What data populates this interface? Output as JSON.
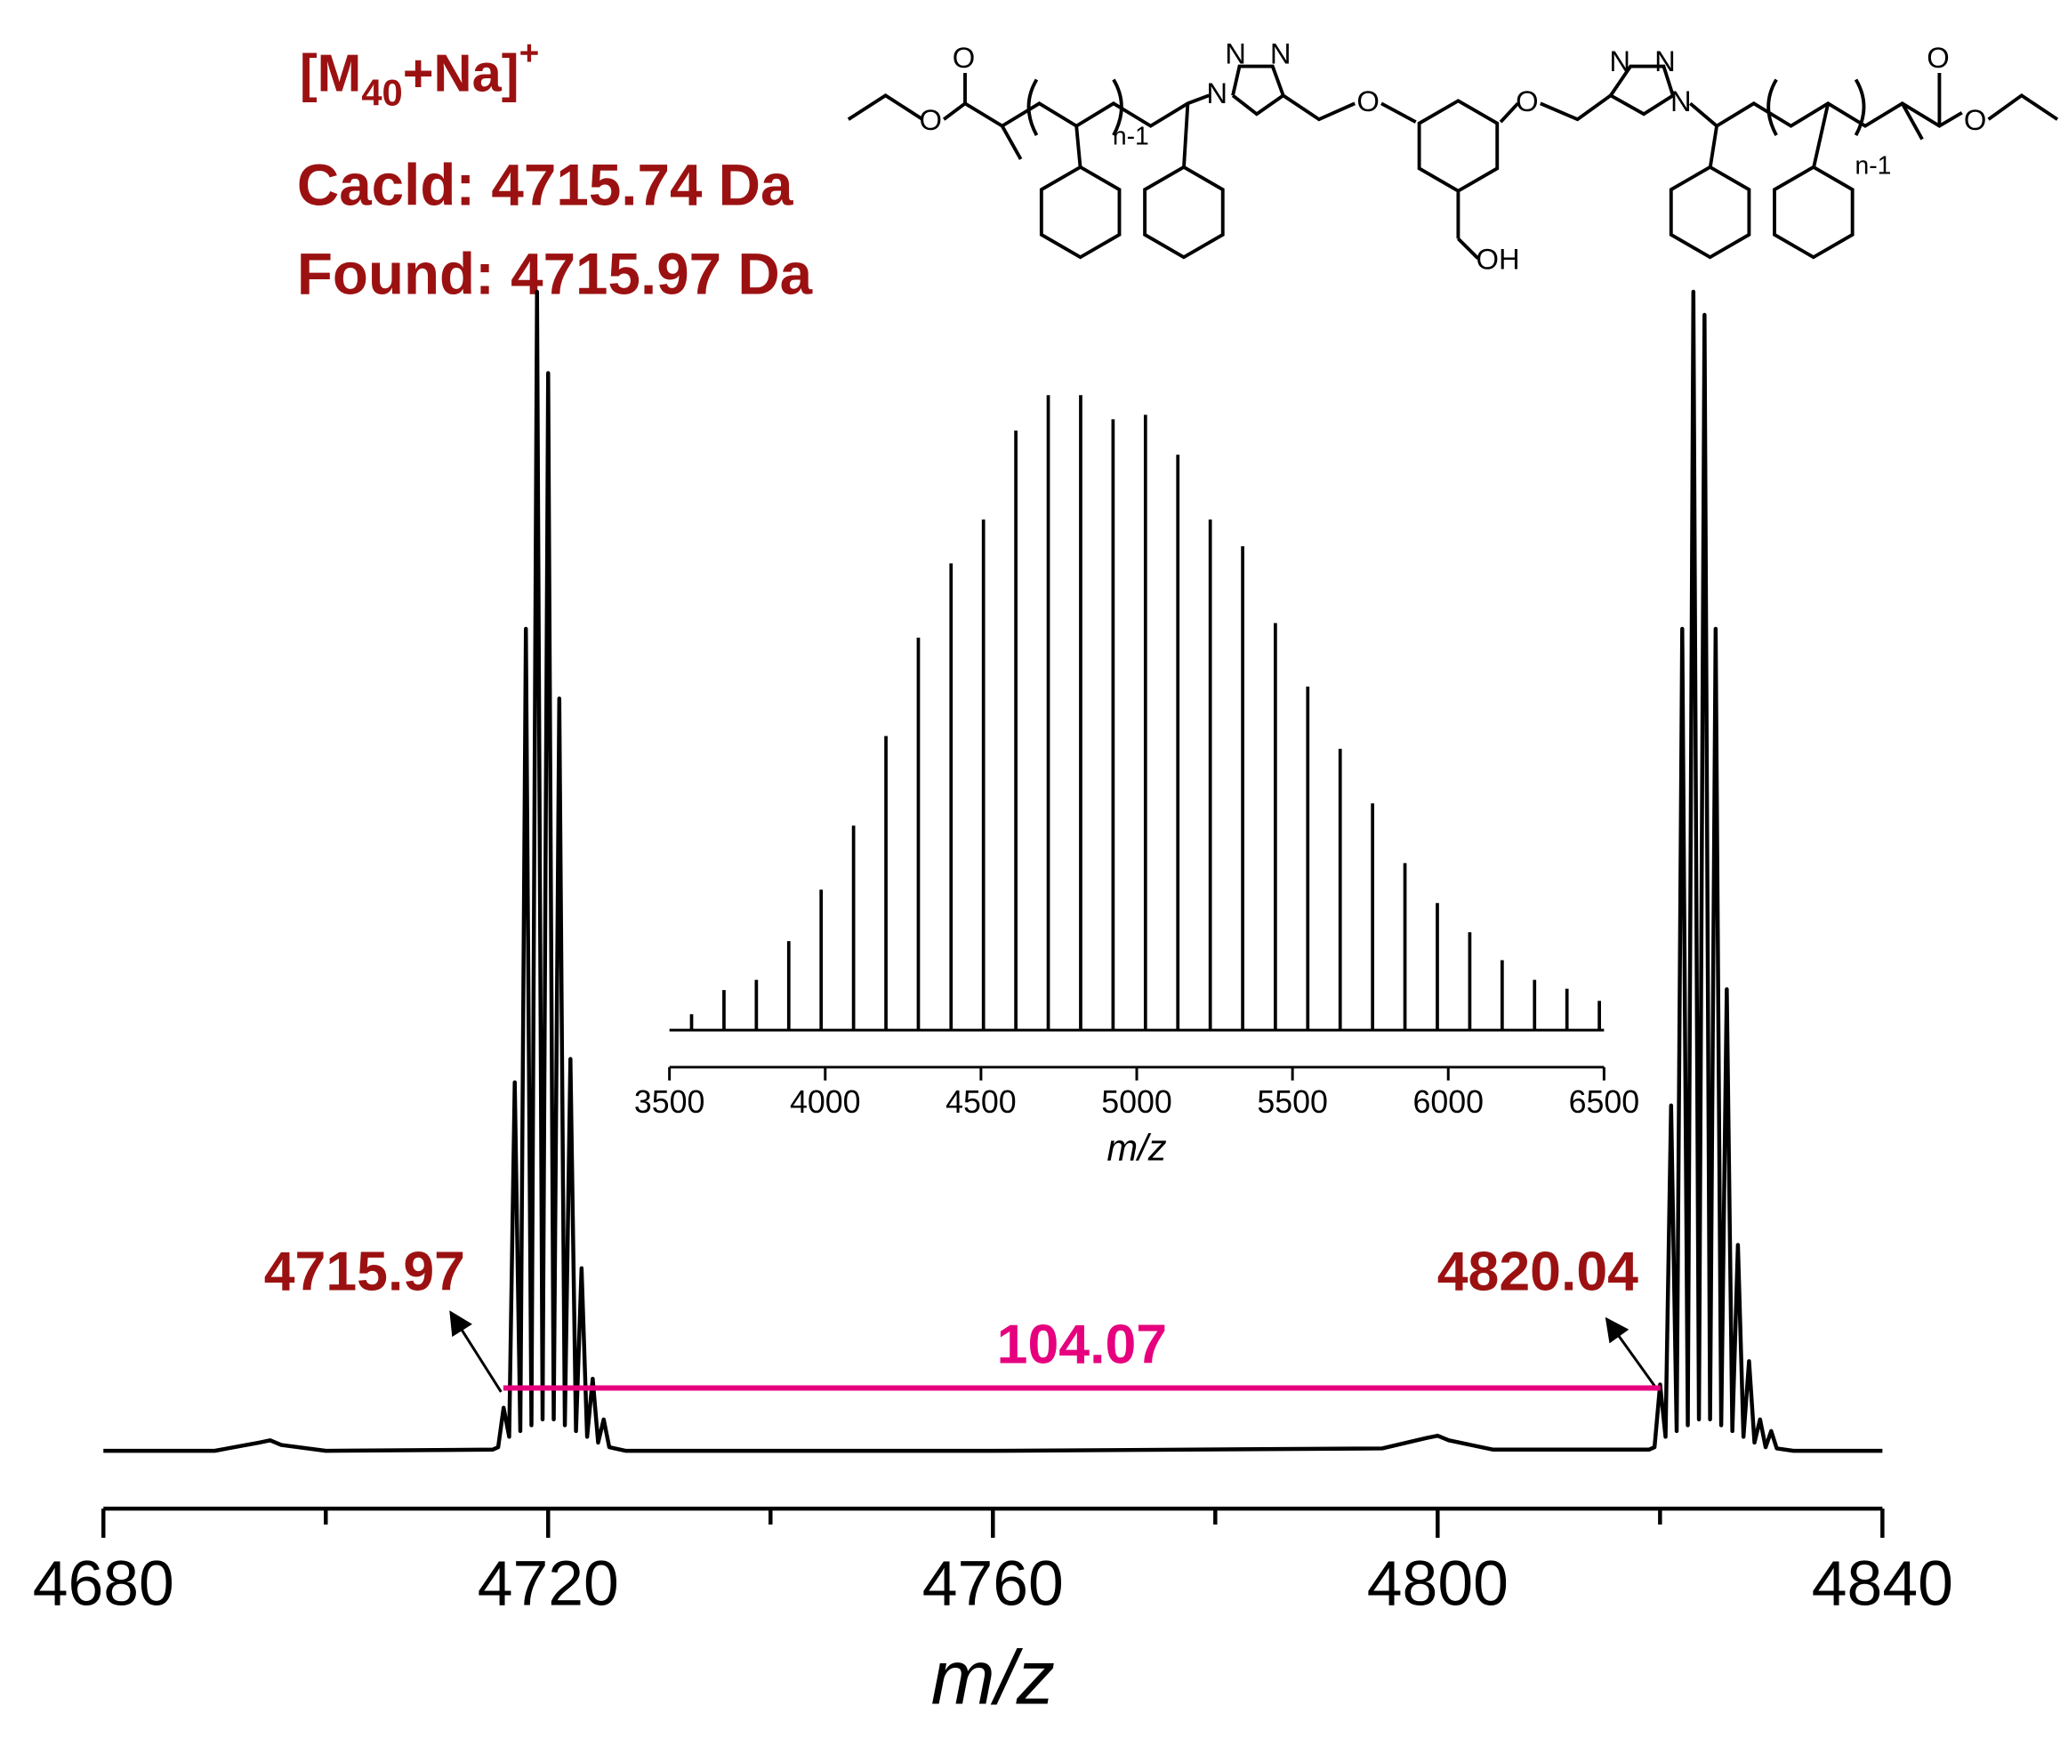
{
  "chart_data": [
    {
      "type": "line",
      "color": "#000000",
      "xlabel": "m/z",
      "xlim": [
        4680,
        4840
      ],
      "xticks": [
        4680,
        4720,
        4760,
        4800,
        4840
      ],
      "xminor": [
        4700,
        4740,
        4780,
        4820
      ],
      "ylim": [
        0,
        100
      ],
      "x": [
        4680,
        4690,
        4694,
        4695,
        4696,
        4700,
        4715,
        4715.5,
        4716,
        4716.5,
        4717,
        4717.5,
        4718,
        4718.5,
        4719,
        4719.5,
        4720,
        4720.5,
        4721,
        4721.5,
        4722,
        4722.5,
        4723,
        4723.5,
        4724,
        4724.5,
        4725,
        4725.5,
        4727,
        4760,
        4795,
        4799,
        4800,
        4801,
        4805,
        4819,
        4819.5,
        4820,
        4820.5,
        4821,
        4821.5,
        4822,
        4822.5,
        4823,
        4823.5,
        4824,
        4824.5,
        4825,
        4825.5,
        4826,
        4826.5,
        4827,
        4827.5,
        4828,
        4828.5,
        4829,
        4829.5,
        4830,
        4830.5,
        4832,
        4840
      ],
      "values": [
        0.3,
        0.3,
        1,
        1.2,
        0.8,
        0.3,
        0.4,
        0.6,
        4,
        1.5,
        32,
        2,
        71,
        2.5,
        100,
        3,
        93,
        3,
        65,
        2.5,
        34,
        2,
        16,
        1.5,
        6.5,
        1,
        3,
        0.6,
        0.3,
        0.3,
        0.5,
        1.4,
        1.6,
        1.2,
        0.4,
        0.4,
        0.6,
        6,
        1.5,
        30,
        2,
        71,
        2.5,
        100,
        3,
        98,
        3,
        71,
        2.5,
        40,
        2,
        18,
        1.5,
        8,
        1,
        3,
        0.6,
        2,
        0.5,
        0.3,
        0.3
      ],
      "ion": [
        "[M",
        "40",
        "+Na]",
        "+"
      ],
      "calcd": "Cacld: 4715.74 Da",
      "found": "Found: 4715.97 Da",
      "peak_labels": [
        4715.97,
        4820.04
      ],
      "difference": 104.07,
      "difference_color": "#e6007e",
      "label_color": "#9b1111"
    },
    {
      "type": "stem",
      "color": "#000000",
      "xlabel": "m/z",
      "xlim": [
        3500,
        6500
      ],
      "xticks": [
        3500,
        4000,
        4500,
        5000,
        5500,
        6000,
        6500
      ],
      "ylim": [
        0,
        100
      ],
      "x": [
        3571,
        3675,
        3779,
        3883,
        3987,
        4091,
        4195,
        4299,
        4404,
        4508,
        4612,
        4716,
        4820,
        4924,
        5028,
        5132,
        5236,
        5340,
        5445,
        5549,
        5653,
        5757,
        5861,
        5965,
        6069,
        6173,
        6277,
        6381,
        6485
      ],
      "values": [
        2.5,
        6.3,
        7.9,
        14,
        22.1,
        32.2,
        46.3,
        61.8,
        73.5,
        80.4,
        94.4,
        100,
        100,
        96.2,
        96.9,
        90.6,
        80.4,
        76.2,
        64.1,
        54.1,
        44.3,
        35.7,
        26.3,
        20,
        15.4,
        11,
        7.9,
        6.5,
        4.6
      ]
    }
  ],
  "structure": {
    "atoms": [
      "O",
      "O",
      "N",
      "N",
      "N",
      "O",
      "O",
      "N",
      "N",
      "N",
      "OH",
      "O",
      "O"
    ],
    "subscripts": [
      "n-1",
      "n-1"
    ]
  }
}
